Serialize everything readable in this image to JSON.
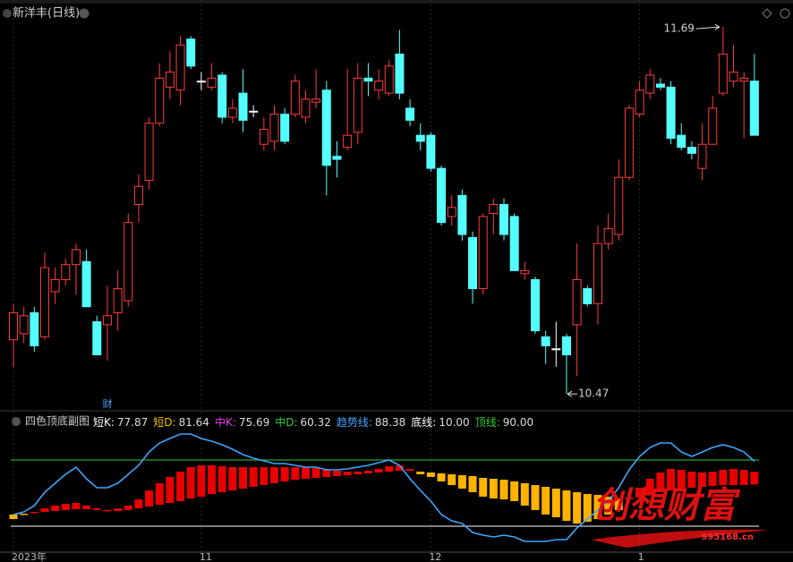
{
  "chart_data": [
    {
      "type": "candlestick",
      "title": "新洋丰(日线)",
      "categories": [
        "2023年",
        null,
        null,
        null,
        null,
        null,
        null,
        null,
        null,
        null,
        null,
        null,
        null,
        null,
        null,
        null,
        null,
        null,
        "11",
        null,
        null,
        null,
        null,
        null,
        null,
        null,
        null,
        null,
        null,
        null,
        null,
        null,
        null,
        null,
        null,
        null,
        null,
        null,
        null,
        null,
        "12",
        null,
        null,
        null,
        null,
        null,
        null,
        null,
        null,
        null,
        null,
        null,
        null,
        null,
        null,
        null,
        null,
        null,
        null,
        null,
        "1",
        null,
        null,
        null,
        null,
        null,
        null,
        null,
        null,
        null,
        null,
        null
      ],
      "event_labels": [
        null,
        null,
        null,
        null,
        null,
        null,
        null,
        null,
        null,
        "财",
        null,
        null,
        null,
        null,
        null,
        null,
        null,
        null,
        null,
        null,
        null,
        null,
        null,
        null,
        null,
        null,
        null,
        null,
        null,
        null,
        null,
        null,
        null,
        null,
        null,
        null,
        null,
        null,
        null,
        null,
        null,
        null,
        null,
        null,
        null,
        null,
        null,
        null,
        null,
        null,
        null,
        null,
        null,
        null,
        null,
        null,
        null,
        null,
        null,
        null,
        null,
        null,
        null,
        null,
        null,
        null,
        null,
        null,
        null,
        null,
        null,
        null
      ],
      "open": [
        10.65,
        10.67,
        10.74,
        10.66,
        10.81,
        10.85,
        10.9,
        10.91,
        10.71,
        10.7,
        10.74,
        10.78,
        11.1,
        11.18,
        11.37,
        11.49,
        11.48,
        11.65,
        11.51,
        11.49,
        11.53,
        11.39,
        11.47,
        11.41,
        11.3,
        11.31,
        11.4,
        11.4,
        11.39,
        11.44,
        11.48,
        11.26,
        11.29,
        11.34,
        11.52,
        11.48,
        11.47,
        11.6,
        11.42,
        11.33,
        11.33,
        11.22,
        11.06,
        11.13,
        10.99,
        10.82,
        11.07,
        11.1,
        11.06,
        10.87,
        10.85,
        10.66,
        10.62,
        10.66,
        10.7,
        10.82,
        10.77,
        10.97,
        11.0,
        11.19,
        11.4,
        11.47,
        11.5,
        11.49,
        11.33,
        11.29,
        11.22,
        11.3,
        11.47,
        11.51,
        11.51,
        11.51
      ],
      "high": [
        10.77,
        10.76,
        10.76,
        10.94,
        10.89,
        10.92,
        10.97,
        10.95,
        10.73,
        10.83,
        10.88,
        11.07,
        11.2,
        11.39,
        11.57,
        11.61,
        11.66,
        11.66,
        11.54,
        11.57,
        11.54,
        11.45,
        11.55,
        11.43,
        11.39,
        11.43,
        11.42,
        11.53,
        11.48,
        11.55,
        11.51,
        11.31,
        11.55,
        11.57,
        11.57,
        11.55,
        11.58,
        11.68,
        11.45,
        11.37,
        11.34,
        11.23,
        11.13,
        11.15,
        11.01,
        11.07,
        11.12,
        11.12,
        11.07,
        10.91,
        10.86,
        10.68,
        10.71,
        10.67,
        10.97,
        10.83,
        11.03,
        11.07,
        11.25,
        11.43,
        11.51,
        11.55,
        11.52,
        11.51,
        11.37,
        11.31,
        11.37,
        11.46,
        11.69,
        11.63,
        11.54,
        11.6
      ],
      "low": [
        10.56,
        10.64,
        10.61,
        10.65,
        10.77,
        10.83,
        10.8,
        10.76,
        10.6,
        10.58,
        10.68,
        10.76,
        11.04,
        11.15,
        11.36,
        11.45,
        11.43,
        11.55,
        11.48,
        11.48,
        11.37,
        11.37,
        11.34,
        11.39,
        11.28,
        11.28,
        11.3,
        11.39,
        11.37,
        11.42,
        11.13,
        11.19,
        11.28,
        11.3,
        11.46,
        11.45,
        11.46,
        11.45,
        11.36,
        11.28,
        11.21,
        11.03,
        11.03,
        10.98,
        10.77,
        10.8,
        11.0,
        10.98,
        10.88,
        10.85,
        10.67,
        10.57,
        10.56,
        10.47,
        10.53,
        10.76,
        10.7,
        10.95,
        10.98,
        11.18,
        11.39,
        11.45,
        11.48,
        11.3,
        11.28,
        11.25,
        11.18,
        11.3,
        11.46,
        11.49,
        11.32,
        11.33
      ],
      "close": [
        10.74,
        10.73,
        10.63,
        10.89,
        10.85,
        10.9,
        10.95,
        10.76,
        10.6,
        10.73,
        10.82,
        11.04,
        11.16,
        11.37,
        11.52,
        11.54,
        11.63,
        11.56,
        11.51,
        11.52,
        11.39,
        11.42,
        11.38,
        11.41,
        11.35,
        11.4,
        11.31,
        11.51,
        11.45,
        11.45,
        11.23,
        11.25,
        11.33,
        11.52,
        11.51,
        11.51,
        11.56,
        11.47,
        11.38,
        11.31,
        11.22,
        11.04,
        11.09,
        11.0,
        10.82,
        11.06,
        11.1,
        11.0,
        10.88,
        10.88,
        10.68,
        10.63,
        10.62,
        10.6,
        10.85,
        10.77,
        10.97,
        11.02,
        11.19,
        11.42,
        11.48,
        11.53,
        11.49,
        11.32,
        11.29,
        11.27,
        11.3,
        11.42,
        11.6,
        11.54,
        11.52,
        11.33
      ],
      "ylim": [
        10.42,
        11.75
      ],
      "up_color": "#ff3c3c",
      "down_color": "#54ffff",
      "flat_color": "#ffffff",
      "annotations": [
        11.69,
        10.47
      ]
    },
    {
      "type": "indicator",
      "title": "四色顶底副图",
      "ylim": [
        -20,
        130
      ],
      "bar_up_color": "#e80000",
      "bar_down_color": "#ffb300",
      "series": [
        {
          "name": "中K",
          "values": [
            18.6,
            24.1,
            27.3,
            31.6,
            34.9,
            37.0,
            38.1,
            34.9,
            31.6,
            29.5,
            31.6,
            34.9,
            42.4,
            53.2,
            61.9,
            69.5,
            75.9,
            81.3,
            83.5,
            83.5,
            82.4,
            81.3,
            81.3,
            81.3,
            81.3,
            81.3,
            81.3,
            81.3,
            81.3,
            80.3,
            79.2,
            77.0,
            75.9,
            75.9,
            77.0,
            79.2,
            82.4,
            83.5,
            79.2,
            72.7,
            69.5,
            64.1,
            59.7,
            55.4,
            51.1,
            45.7,
            43.5,
            42.4,
            40.3,
            34.9,
            29.5,
            24.1,
            20.8,
            16.5,
            13.2,
            15.4,
            18.6,
            24.1,
            29.5,
            44.6,
            56.5,
            67.3,
            74.9,
            79.2,
            78.1,
            75.9,
            74.9,
            75.9,
            78.1,
            79.2,
            78.1,
            75.69
          ]
        },
        {
          "name": "中D",
          "values": [
            24.1,
            25.1,
            26.2,
            27.3,
            28.4,
            29.5,
            30.5,
            30.5,
            29.5,
            28.4,
            28.4,
            29.5,
            31.6,
            33.8,
            35.9,
            38.1,
            40.3,
            43.5,
            45.7,
            48.9,
            51.1,
            53.2,
            55.4,
            57.6,
            59.7,
            61.9,
            64.1,
            66.2,
            67.3,
            68.4,
            69.5,
            70.5,
            71.6,
            72.7,
            73.8,
            74.9,
            75.9,
            77.0,
            77.0,
            75.9,
            74.9,
            73.8,
            72.7,
            71.6,
            70.5,
            68.4,
            67.3,
            66.2,
            64.1,
            61.9,
            59.7,
            57.6,
            55.4,
            53.2,
            51.1,
            48.9,
            47.8,
            45.7,
            43.5,
            42.4,
            44.6,
            47.8,
            51.1,
            53.2,
            55.4,
            56.5,
            57.6,
            58.6,
            59.7,
            59.7,
            59.7,
            60.32
          ]
        },
        {
          "name": "趋势线",
          "color": "#3ea6ff",
          "values": [
            24.1,
            27.3,
            34.9,
            51.1,
            61.9,
            72.7,
            81.3,
            67.3,
            56.5,
            56.5,
            61.9,
            72.7,
            83.5,
            99.7,
            110.5,
            115.9,
            121.3,
            121.3,
            115.9,
            112.7,
            108.4,
            103.0,
            96.5,
            92.2,
            88.9,
            85.7,
            85.7,
            83.5,
            81.3,
            81.3,
            78.1,
            78.1,
            79.2,
            81.3,
            83.5,
            86.8,
            90.0,
            83.5,
            67.3,
            53.2,
            40.3,
            24.1,
            16.5,
            13.2,
            2.4,
            -0.8,
            -3.0,
            -0.8,
            -3.0,
            -8.4,
            -8.4,
            -8.4,
            -6.2,
            -6.2,
            7.8,
            18.6,
            29.5,
            40.3,
            56.5,
            78.1,
            94.3,
            105.1,
            110.5,
            110.5,
            99.7,
            94.3,
            99.7,
            105.1,
            108.4,
            105.1,
            99.7,
            88.38
          ]
        }
      ],
      "readouts": [
        {
          "name": "短K:",
          "value": 77.87,
          "color": "#ffffff"
        },
        {
          "name": "短D:",
          "value": 81.64,
          "color": "#f2c200"
        },
        {
          "name": "中K:",
          "value": 75.69,
          "color": "#e040e0"
        },
        {
          "name": "中D:",
          "value": 60.32,
          "color": "#2ecc40"
        },
        {
          "name": "趋势线:",
          "value": 88.38,
          "color": "#3ea6ff"
        },
        {
          "name": "底线:",
          "value": {
            "value": 10,
            "label": "10.00"
          },
          "color": "#ffffff"
        },
        {
          "name": "顶线:",
          "value": {
            "value": 90,
            "label": "90.00"
          },
          "color": "#33cc33"
        }
      ]
    }
  ],
  "watermark": {
    "text": "创想财富",
    "site": "995168.cn"
  }
}
